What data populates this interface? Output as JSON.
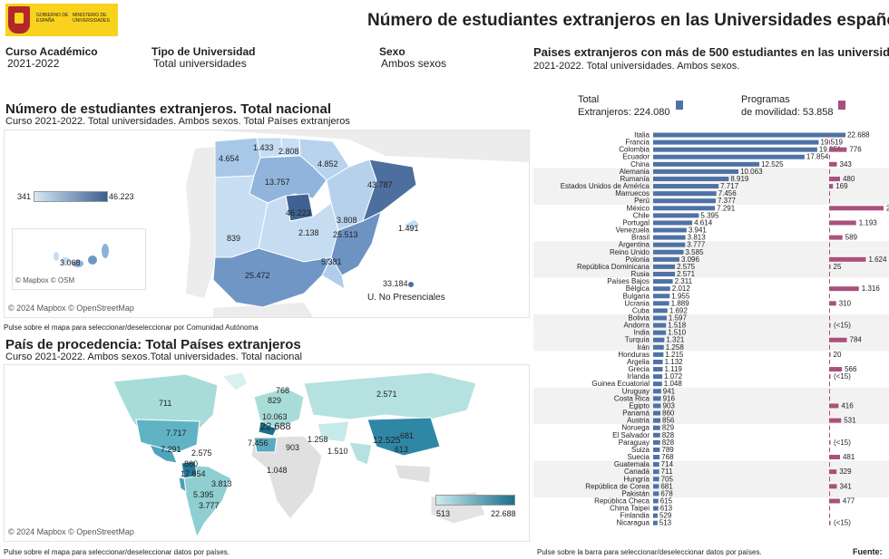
{
  "header": {
    "logo_line1": "GOBIERNO DE ESPAÑA",
    "logo_line2": "MINISTERIO DE UNIVERSIDADES",
    "title": "Número de estudiantes extranjeros en las Universidades españolas"
  },
  "filters": [
    {
      "label": "Curso Académico",
      "value": "2021-2022"
    },
    {
      "label": "Tipo de Universidad",
      "value": "Total universidades"
    },
    {
      "label": "Sexo",
      "value": "Ambos sexos"
    }
  ],
  "spain_map": {
    "title": "Número de estudiantes extranjeros. Total nacional",
    "subtitle": "Curso 2021-2022. Total universidades. Ambos sexos. Total Países extranjeros",
    "legend_min": "341",
    "legend_max": "46.223",
    "inset_copyright": "© Mapbox © OSM",
    "copyright": "© 2024 Mapbox © OpenStreetMap",
    "note": "Pulse sobre el mapa para seleccionar/deseleccionar por Comunidad Autónoma",
    "non_presencial_label": "U. No Presenciales",
    "non_presencial_value": "33.184",
    "region_values": [
      "4.654",
      "1.433",
      "2.808",
      "4.852",
      "13.757",
      "3.808",
      "43.787",
      "46.223",
      "839",
      "2.138",
      "25.513",
      "1.491",
      "25.472",
      "5.381",
      "3.068"
    ]
  },
  "world_map": {
    "title": "País de procedencia: Total Países extranjeros",
    "subtitle": "Curso 2021-2022. Ambos sexos.Total universidades. Total nacional",
    "legend_min": "513",
    "legend_max": "22.688",
    "copyright": "© 2024 Mapbox © OpenStreetMap",
    "note": "Pulse sobre el mapa para seleccionar/deseleccionar datos por países.",
    "country_values": [
      "711",
      "7.717",
      "7.291",
      "2.575",
      "860",
      "17.854",
      "3.813",
      "5.395",
      "3.777",
      "829",
      "768",
      "10.063",
      "22.688",
      "7.456",
      "903",
      "1.258",
      "1.510",
      "2.571",
      "12.525",
      "681",
      "613",
      "1.048"
    ]
  },
  "bar_panel": {
    "title": "Paises extranjeros con más de 500 estudiantes en las universidades",
    "subtitle": "2021-2022. Total universidades. Ambos sexos.",
    "legend_total_l1": "Total",
    "legend_total_l2": "Extranjeros: 224.080",
    "legend_mob_l1": "Programas",
    "legend_mob_l2": "de movilidad: 53.858",
    "note": "Pulse sobre la barra para seleccionar/deseleccionar datos por países.",
    "source": "Fuente:"
  },
  "colors": {
    "total_bar": "#4e72a5",
    "mobility_bar": "#a9517c",
    "map_low": "#d6e8f7",
    "map_high": "#3a5f8f",
    "world_low": "#c9ecec",
    "world_high": "#1d6e8e"
  },
  "chart_data": {
    "type": "bar",
    "orientation": "horizontal",
    "title": "Paises extranjeros con más de 500 estudiantes en las universidades",
    "categories": [
      "Italia",
      "Francia",
      "Colombia",
      "Ecuador",
      "China",
      "Alemania",
      "Rumanía",
      "Estados Unidos de América",
      "Marruecos",
      "Perú",
      "México",
      "Chile",
      "Portugal",
      "Venezuela",
      "Brasil",
      "Argentina",
      "Reino Unido",
      "Polonia",
      "República Dominicana",
      "Rusia",
      "Países Bajos",
      "Bélgica",
      "Bulgaria",
      "Ucrania",
      "Cuba",
      "Bolivia",
      "Andorra",
      "India",
      "Turquía",
      "Irán",
      "Honduras",
      "Argelia",
      "Grecia",
      "Irlanda",
      "Guinea Ecuatorial",
      "Uruguay",
      "Costa Rica",
      "Egipto",
      "Panamá",
      "Austria",
      "Noruega",
      "El Salvador",
      "Paraguay",
      "Suiza",
      "Suecia",
      "Guatemala",
      "Canadá",
      "Hungría",
      "República de Corea",
      "Pakistán",
      "República Checa",
      "China Taipei",
      "Finlandia",
      "Nicaragua"
    ],
    "series": [
      {
        "name": "Total Extranjeros",
        "values": [
          22688,
          19519,
          19351,
          17854,
          12525,
          10063,
          8919,
          7717,
          7456,
          7377,
          7291,
          5395,
          4614,
          3941,
          3813,
          3777,
          3585,
          3096,
          2575,
          2571,
          2311,
          2012,
          1955,
          1889,
          1692,
          1597,
          1518,
          1510,
          1321,
          1258,
          1215,
          1132,
          1119,
          1072,
          1048,
          941,
          916,
          903,
          860,
          856,
          829,
          828,
          828,
          789,
          768,
          714,
          711,
          705,
          681,
          678,
          615,
          613,
          529,
          513
        ]
      },
      {
        "name": "Programas de movilidad",
        "values": [
          null,
          null,
          776,
          null,
          343,
          null,
          480,
          169,
          null,
          null,
          2409,
          null,
          1193,
          null,
          589,
          null,
          null,
          1624,
          25,
          null,
          null,
          1316,
          null,
          310,
          null,
          null,
          "(<15)",
          null,
          784,
          null,
          20,
          null,
          566,
          "(<15)",
          null,
          null,
          null,
          416,
          null,
          531,
          null,
          null,
          "(<15)",
          null,
          481,
          null,
          329,
          null,
          341,
          null,
          477,
          null,
          null,
          "(<15)"
        ]
      }
    ],
    "xlim": [
      0,
      23000
    ]
  }
}
